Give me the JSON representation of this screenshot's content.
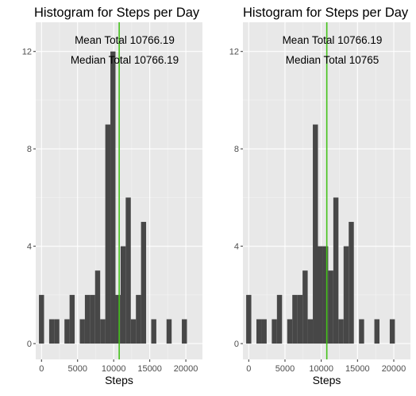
{
  "colors": {
    "panel": "#e8e8e8",
    "grid_major": "#ffffff",
    "bar": "#474747",
    "mean_line": "#44c21a",
    "tick_text": "#4d4d4d"
  },
  "chart_data": [
    {
      "type": "bar",
      "title": "Histogram for Steps per Day",
      "xlabel": "Steps",
      "ylabel": "",
      "xlim": [
        -800,
        22300
      ],
      "ylim": [
        -0.65,
        13.2
      ],
      "x_ticks": [
        0,
        5000,
        10000,
        15000,
        20000
      ],
      "x_tick_labels": [
        "0",
        "5000",
        "10000",
        "15000",
        "20000"
      ],
      "y_ticks": [
        0,
        4,
        8,
        12
      ],
      "y_tick_labels": [
        "0",
        "4",
        "8",
        "12"
      ],
      "grid": true,
      "bin_width": 707.1,
      "bin_start": -353.6,
      "counts": [
        2,
        0,
        1,
        1,
        0,
        1,
        2,
        0,
        1,
        2,
        2,
        3,
        1,
        9,
        12,
        2,
        4,
        6,
        1,
        2,
        5,
        0,
        1,
        0,
        0,
        1,
        0,
        0,
        1
      ],
      "vline": 10766.19,
      "annotations": [
        "Mean Total 10766.19",
        "Median Total 10766.19"
      ]
    },
    {
      "type": "bar",
      "title": "Histogram for Steps per Day",
      "xlabel": "Steps",
      "ylabel": "",
      "xlim": [
        -800,
        22300
      ],
      "ylim": [
        -0.65,
        13.2
      ],
      "x_ticks": [
        0,
        5000,
        10000,
        15000,
        20000
      ],
      "x_tick_labels": [
        "0",
        "5000",
        "10000",
        "15000",
        "20000"
      ],
      "y_ticks": [
        0,
        4,
        8,
        12
      ],
      "y_tick_labels": [
        "0",
        "4",
        "8",
        "12"
      ],
      "grid": true,
      "bin_width": 707.1,
      "bin_start": -353.6,
      "counts": [
        2,
        0,
        1,
        1,
        0,
        1,
        2,
        0,
        1,
        2,
        2,
        3,
        1,
        9,
        4,
        4,
        3,
        6,
        1,
        4,
        5,
        0,
        1,
        0,
        0,
        1,
        0,
        0,
        1
      ],
      "vline": 10766.19,
      "annotations": [
        "Mean Total 10766.19",
        "Median Total 10765"
      ]
    }
  ]
}
